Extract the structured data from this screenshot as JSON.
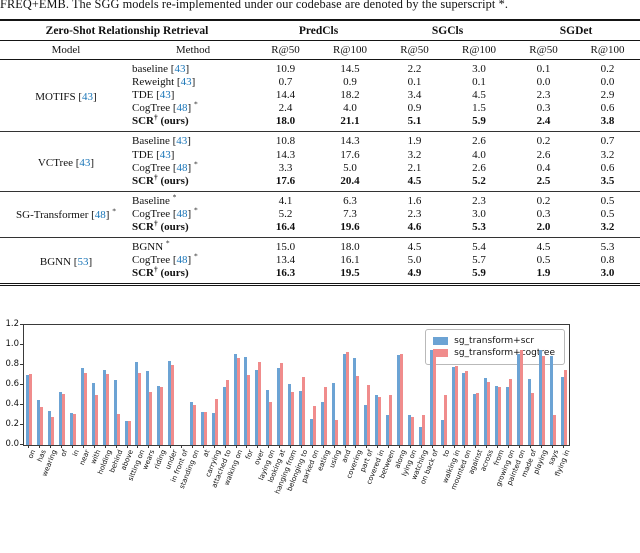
{
  "caption": "FREQ+EMB. The SGG models re-implemented under our codebase are denoted by the superscript *.",
  "table": {
    "group_header": {
      "left": "Zero-Shot Relationship Retrieval",
      "spans": [
        "PredCls",
        "SGCls",
        "SGDet"
      ]
    },
    "sub_header": [
      "Model",
      "Method",
      "R@50",
      "R@100",
      "R@50",
      "R@100",
      "R@50",
      "R@100"
    ],
    "groups": [
      {
        "model": {
          "pre": "MOTIFS",
          "cite": "43",
          "sup": "",
          "post": ""
        },
        "rows": [
          {
            "method": {
              "pre": "baseline",
              "cite": "43",
              "sup": "",
              "post": ""
            },
            "bold": false,
            "values": [
              "10.9",
              "14.5",
              "2.2",
              "3.0",
              "0.1",
              "0.2"
            ]
          },
          {
            "method": {
              "pre": "Reweight",
              "cite": "43",
              "sup": "",
              "post": ""
            },
            "bold": false,
            "values": [
              "0.7",
              "0.9",
              "0.1",
              "0.1",
              "0.0",
              "0.0"
            ]
          },
          {
            "method": {
              "pre": "TDE",
              "cite": "43",
              "sup": "",
              "post": ""
            },
            "bold": false,
            "values": [
              "14.4",
              "18.2",
              "3.4",
              "4.5",
              "2.3",
              "2.9"
            ]
          },
          {
            "method": {
              "pre": "CogTree",
              "cite": "48",
              "sup": "*",
              "post": ""
            },
            "bold": false,
            "values": [
              "2.4",
              "4.0",
              "0.9",
              "1.5",
              "0.3",
              "0.6"
            ]
          },
          {
            "method": {
              "pre": "SCR",
              "cite": "",
              "sup": "†",
              "post": " (ours)"
            },
            "bold": true,
            "values": [
              "18.0",
              "21.1",
              "5.1",
              "5.9",
              "2.4",
              "3.8"
            ]
          }
        ]
      },
      {
        "model": {
          "pre": "VCTree",
          "cite": "43",
          "sup": "",
          "post": ""
        },
        "rows": [
          {
            "method": {
              "pre": "Baseline",
              "cite": "43",
              "sup": "",
              "post": ""
            },
            "bold": false,
            "values": [
              "10.8",
              "14.3",
              "1.9",
              "2.6",
              "0.2",
              "0.7"
            ]
          },
          {
            "method": {
              "pre": "TDE",
              "cite": "43",
              "sup": "",
              "post": ""
            },
            "bold": false,
            "values": [
              "14.3",
              "17.6",
              "3.2",
              "4.0",
              "2.6",
              "3.2"
            ]
          },
          {
            "method": {
              "pre": "CogTree",
              "cite": "48",
              "sup": "*",
              "post": ""
            },
            "bold": false,
            "values": [
              "3.3",
              "5.0",
              "2.1",
              "2.6",
              "0.4",
              "0.6"
            ]
          },
          {
            "method": {
              "pre": "SCR",
              "cite": "",
              "sup": "†",
              "post": " (ours)"
            },
            "bold": true,
            "values": [
              "17.6",
              "20.4",
              "4.5",
              "5.2",
              "2.5",
              "3.5"
            ]
          }
        ]
      },
      {
        "model": {
          "pre": "SG-Transformer",
          "cite": "48",
          "sup": "*",
          "post": ""
        },
        "rows": [
          {
            "method": {
              "pre": "Baseline",
              "cite": "",
              "sup": "*",
              "post": ""
            },
            "bold": false,
            "values": [
              "4.1",
              "6.3",
              "1.6",
              "2.3",
              "0.2",
              "0.5"
            ]
          },
          {
            "method": {
              "pre": "CogTree",
              "cite": "48",
              "sup": "*",
              "post": ""
            },
            "bold": false,
            "values": [
              "5.2",
              "7.3",
              "2.3",
              "3.0",
              "0.3",
              "0.5"
            ]
          },
          {
            "method": {
              "pre": "SCR",
              "cite": "",
              "sup": "†",
              "post": " (ours)"
            },
            "bold": true,
            "values": [
              "16.4",
              "19.6",
              "4.6",
              "5.3",
              "2.0",
              "3.2"
            ]
          }
        ]
      },
      {
        "model": {
          "pre": "BGNN",
          "cite": "53",
          "sup": "",
          "post": ""
        },
        "rows": [
          {
            "method": {
              "pre": "BGNN",
              "cite": "",
              "sup": "*",
              "post": ""
            },
            "bold": false,
            "values": [
              "15.0",
              "18.0",
              "4.5",
              "5.4",
              "4.5",
              "5.3"
            ]
          },
          {
            "method": {
              "pre": "CogTree",
              "cite": "48",
              "sup": "*",
              "post": ""
            },
            "bold": false,
            "values": [
              "13.4",
              "16.1",
              "5.0",
              "5.7",
              "0.5",
              "0.8"
            ]
          },
          {
            "method": {
              "pre": "SCR",
              "cite": "",
              "sup": "†",
              "post": " (ours)"
            },
            "bold": true,
            "values": [
              "16.3",
              "19.5",
              "4.9",
              "5.9",
              "1.9",
              "3.0"
            ]
          }
        ]
      }
    ]
  },
  "chart_data": {
    "type": "bar",
    "title": "",
    "xlabel": "",
    "ylabel": "",
    "ylim": [
      0,
      1.2
    ],
    "yticks": [
      0.0,
      0.2,
      0.4,
      0.6,
      0.8,
      1.0,
      1.2
    ],
    "grid": false,
    "legend_position": "upper right",
    "categories": [
      "on",
      "has",
      "wearing",
      "of",
      "in",
      "near",
      "with",
      "holding",
      "behind",
      "above",
      "sitting on",
      "wears",
      "riding",
      "under",
      "in front of",
      "standing on",
      "at",
      "carrying",
      "attached to",
      "walking on",
      "for",
      "over",
      "laying on",
      "looking at",
      "hanging from",
      "belonging to",
      "parked on",
      "eating",
      "using",
      "and",
      "covering",
      "part of",
      "covered in",
      "between",
      "along",
      "lying on",
      "watching",
      "on back of",
      "to",
      "walking in",
      "mounted on",
      "against",
      "across",
      "from",
      "growing on",
      "painted on",
      "made of",
      "playing",
      "says",
      "flying in"
    ],
    "series": [
      {
        "name": "sg_transform+scr",
        "color": "#6CA3D4",
        "values": [
          0.7,
          0.45,
          0.34,
          0.53,
          0.32,
          0.77,
          0.62,
          0.75,
          0.65,
          0.24,
          0.83,
          0.74,
          0.59,
          0.84,
          0.0,
          0.43,
          0.33,
          0.32,
          0.58,
          0.91,
          0.88,
          0.75,
          0.55,
          0.77,
          0.61,
          0.54,
          0.26,
          0.43,
          0.62,
          0.91,
          0.87,
          0.4,
          0.5,
          0.3,
          0.9,
          0.3,
          0.18,
          0.95,
          0.25,
          0.78,
          0.72,
          0.51,
          0.67,
          0.59,
          0.58,
          0.91,
          0.66,
          0.95,
          0.89,
          0.68
        ]
      },
      {
        "name": "sg_transform+cogtree",
        "color": "#F08C8C",
        "values": [
          0.71,
          0.38,
          0.28,
          0.51,
          0.31,
          0.72,
          0.5,
          0.71,
          0.31,
          0.24,
          0.72,
          0.53,
          0.58,
          0.8,
          0.0,
          0.4,
          0.33,
          0.46,
          0.65,
          0.87,
          0.7,
          0.83,
          0.43,
          0.82,
          0.53,
          0.68,
          0.39,
          0.58,
          0.25,
          0.93,
          0.69,
          0.6,
          0.48,
          0.5,
          0.91,
          0.28,
          0.3,
          0.91,
          0.5,
          0.79,
          0.74,
          0.52,
          0.63,
          0.58,
          0.66,
          0.95,
          0.52,
          0.89,
          0.3,
          0.75
        ]
      }
    ]
  }
}
